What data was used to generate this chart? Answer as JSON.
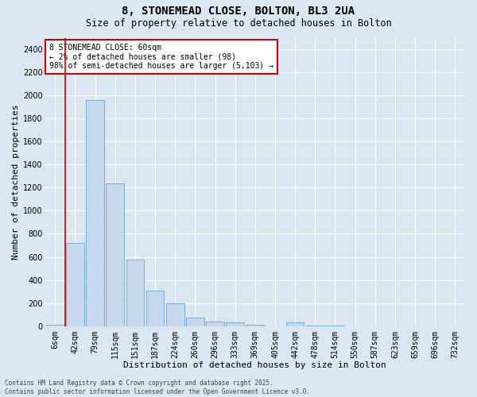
{
  "title": "8, STONEMEAD CLOSE, BOLTON, BL3 2UA",
  "subtitle": "Size of property relative to detached houses in Bolton",
  "xlabel": "Distribution of detached houses by size in Bolton",
  "ylabel": "Number of detached properties",
  "categories": [
    "6sqm",
    "42sqm",
    "79sqm",
    "115sqm",
    "151sqm",
    "187sqm",
    "224sqm",
    "260sqm",
    "296sqm",
    "333sqm",
    "369sqm",
    "405sqm",
    "442sqm",
    "478sqm",
    "514sqm",
    "550sqm",
    "587sqm",
    "623sqm",
    "659sqm",
    "696sqm",
    "732sqm"
  ],
  "values": [
    10,
    720,
    1960,
    1240,
    575,
    305,
    200,
    75,
    40,
    30,
    10,
    0,
    30,
    5,
    5,
    0,
    0,
    0,
    0,
    0,
    0
  ],
  "bar_color": "#c5d8ee",
  "bar_edge_color": "#7aadd4",
  "vline_x_index": 1,
  "vline_color": "#cc0000",
  "annotation_text": "8 STONEMEAD CLOSE: 60sqm\n← 2% of detached houses are smaller (98)\n98% of semi-detached houses are larger (5,103) →",
  "annotation_box_color": "#ffffff",
  "annotation_box_edge_color": "#cc0000",
  "ylim": [
    0,
    2500
  ],
  "yticks": [
    0,
    200,
    400,
    600,
    800,
    1000,
    1200,
    1400,
    1600,
    1800,
    2000,
    2200,
    2400
  ],
  "bg_color": "#dce6f0",
  "plot_bg_color": "#dce6f0",
  "grid_color": "#ffffff",
  "footnote": "Contains HM Land Registry data © Crown copyright and database right 2025.\nContains public sector information licensed under the Open Government Licence v3.0.",
  "title_fontsize": 10,
  "subtitle_fontsize": 8.5,
  "label_fontsize": 8,
  "tick_fontsize": 7,
  "annotation_fontsize": 7,
  "footnote_fontsize": 5.5
}
